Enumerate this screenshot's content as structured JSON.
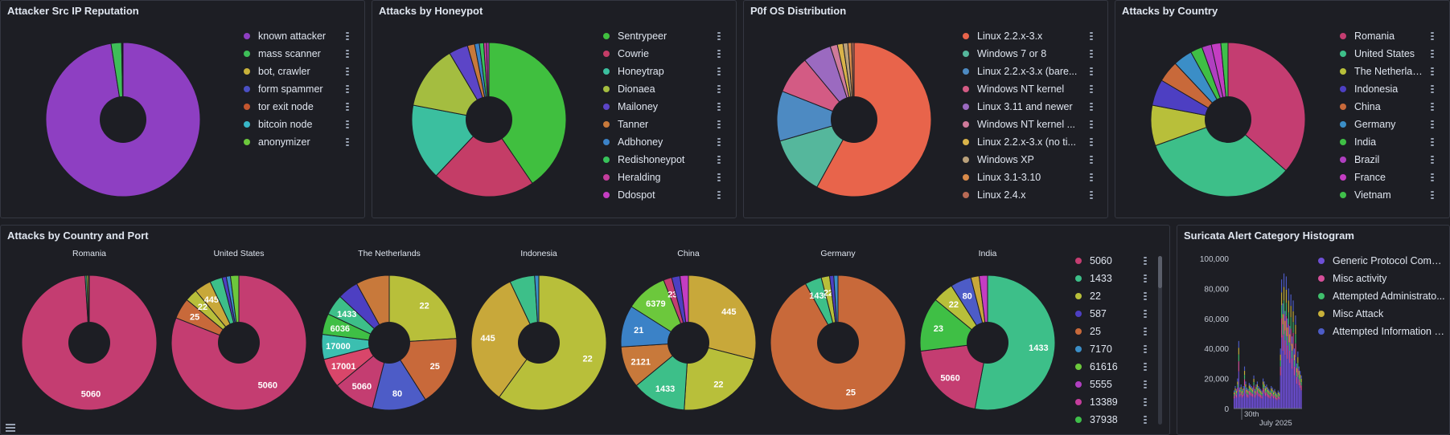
{
  "panels": {
    "reputation": {
      "title": "Attacker Src IP Reputation"
    },
    "honeypot": {
      "title": "Attacks by Honeypot"
    },
    "p0f": {
      "title": "P0f OS Distribution"
    },
    "country": {
      "title": "Attacks by Country"
    },
    "country_port": {
      "title": "Attacks by Country and Port"
    },
    "suricata": {
      "title": "Suricata Alert Category Histogram"
    }
  },
  "chart_data": [
    {
      "id": "reputation",
      "type": "pie",
      "categories": [
        "known attacker",
        "mass scanner",
        "bot, crawler",
        "form spammer",
        "tor exit node",
        "bitcoin node",
        "anonymizer"
      ],
      "values": [
        97.5,
        2.2,
        0.1,
        0.1,
        0.05,
        0.03,
        0.02
      ],
      "colors": [
        "#8e3fc2",
        "#3ebe58",
        "#c8b13a",
        "#4a4fc3",
        "#c3562f",
        "#38b6c7",
        "#6cc83c"
      ]
    },
    {
      "id": "honeypot",
      "type": "pie",
      "categories": [
        "Sentrypeer",
        "Cowrie",
        "Honeytrap",
        "Dionaea",
        "Mailoney",
        "Tanner",
        "Adbhoney",
        "Redishoneypot",
        "Heralding",
        "Ddospot"
      ],
      "values": [
        40.5,
        21.5,
        16,
        13.5,
        4,
        1.5,
        1,
        0.9,
        0.6,
        0.5
      ],
      "colors": [
        "#40bf3f",
        "#c43d67",
        "#3bbf9f",
        "#a4bd40",
        "#5c45c7",
        "#c8793b",
        "#3b82c7",
        "#38c25a",
        "#c43d9c",
        "#c43dc2"
      ]
    },
    {
      "id": "p0f",
      "type": "pie",
      "categories": [
        "Linux 2.2.x-3.x",
        "Windows 7 or 8",
        "Linux 2.2.x-3.x (bare...",
        "Windows NT kernel",
        "Linux 3.11 and newer",
        "Windows NT kernel ...",
        "Linux 2.2.x-3.x (no ti...",
        "Windows XP",
        "Linux 3.1-3.10",
        "Linux 2.4.x"
      ],
      "values": [
        58,
        12.5,
        10.5,
        8,
        6,
        1.5,
        1.2,
        1,
        0.8,
        0.5
      ],
      "colors": [
        "#e8644b",
        "#55b79c",
        "#4d8ac2",
        "#d35b84",
        "#9b6ac0",
        "#cf7a9a",
        "#d9b34a",
        "#b9a07a",
        "#d98b4a",
        "#b86a55"
      ]
    },
    {
      "id": "country",
      "type": "pie",
      "categories": [
        "Romania",
        "United States",
        "The Netherlands",
        "Indonesia",
        "China",
        "Germany",
        "India",
        "Brazil",
        "France",
        "Vietnam"
      ],
      "values": [
        36.5,
        33,
        8.5,
        5.5,
        4.5,
        4,
        2.5,
        2,
        2,
        1.5
      ],
      "colors": [
        "#c43d71",
        "#3dbf89",
        "#b8bf3a",
        "#4d3fc2",
        "#c8693a",
        "#3b8ec7",
        "#3fbf45",
        "#b03fc0",
        "#c43dc2",
        "#3fbf4a"
      ]
    },
    {
      "id": "country_port",
      "type": "pie",
      "legend": [
        "5060",
        "1433",
        "22",
        "587",
        "25",
        "7170",
        "61616",
        "5555",
        "13389",
        "37938"
      ],
      "legend_colors": [
        "#c43d71",
        "#3dbf89",
        "#b8bf3a",
        "#4d3fc2",
        "#c8693a",
        "#3b8ec7",
        "#6cc83c",
        "#b03fc0",
        "#c43d9c",
        "#3fbf4a"
      ],
      "pies": [
        {
          "name": "Romania",
          "slices": [
            {
              "port": "5060",
              "value": 99,
              "color": "#c43d71",
              "label": "5060"
            },
            {
              "port": "1433",
              "value": 0.4,
              "color": "#3dbf89"
            },
            {
              "port": "22",
              "value": 0.4,
              "color": "#b8bf3a"
            },
            {
              "port": "25",
              "value": 0.2,
              "color": "#c8693a"
            }
          ]
        },
        {
          "name": "United States",
          "slices": [
            {
              "port": "5060",
              "value": 81,
              "color": "#c43d71",
              "label": "5060"
            },
            {
              "port": "25",
              "value": 5,
              "color": "#c8693a",
              "label": "25"
            },
            {
              "port": "22",
              "value": 3,
              "color": "#b8bf3a",
              "label": "22"
            },
            {
              "port": "445",
              "value": 4,
              "color": "#c8a83a",
              "label": "445"
            },
            {
              "port": "1433",
              "value": 3,
              "color": "#3dbf89"
            },
            {
              "port": "587",
              "value": 1,
              "color": "#4d3fc2"
            },
            {
              "port": "7170",
              "value": 1,
              "color": "#3b8ec7"
            },
            {
              "port": "other",
              "value": 2,
              "color": "#6cc83c"
            }
          ]
        },
        {
          "name": "The Netherlands",
          "slices": [
            {
              "port": "22",
              "value": 24,
              "color": "#b8bf3a",
              "label": "22"
            },
            {
              "port": "25",
              "value": 17,
              "color": "#c8693a",
              "label": "25"
            },
            {
              "port": "80",
              "value": 13,
              "color": "#4d5cc7",
              "label": "80"
            },
            {
              "port": "5060",
              "value": 10,
              "color": "#c43d71",
              "label": "5060"
            },
            {
              "port": "17001",
              "value": 7,
              "color": "#d9466a",
              "label": "17001"
            },
            {
              "port": "17000",
              "value": 6,
              "color": "#3bbfb0",
              "label": "17000"
            },
            {
              "port": "6036",
              "value": 5,
              "color": "#3fbf45",
              "label": "6036"
            },
            {
              "port": "1433",
              "value": 5,
              "color": "#3dbf89",
              "label": "1433"
            },
            {
              "port": "587",
              "value": 5,
              "color": "#4d3fc2"
            },
            {
              "port": "other",
              "value": 8,
              "color": "#c8793b"
            }
          ]
        },
        {
          "name": "Indonesia",
          "slices": [
            {
              "port": "22",
              "value": 60,
              "color": "#b8bf3a",
              "label": "22"
            },
            {
              "port": "445",
              "value": 33,
              "color": "#c8a83a",
              "label": "445"
            },
            {
              "port": "1433",
              "value": 6,
              "color": "#3dbf89"
            },
            {
              "port": "other",
              "value": 1,
              "color": "#3b8ec7"
            }
          ]
        },
        {
          "name": "China",
          "slices": [
            {
              "port": "445",
              "value": 29,
              "color": "#c8a83a",
              "label": "445"
            },
            {
              "port": "22",
              "value": 22,
              "color": "#b8bf3a",
              "label": "22"
            },
            {
              "port": "1433",
              "value": 13,
              "color": "#3dbf89",
              "label": "1433"
            },
            {
              "port": "2121",
              "value": 10,
              "color": "#c8793b",
              "label": "2121"
            },
            {
              "port": "21",
              "value": 10,
              "color": "#3b82c7",
              "label": "21"
            },
            {
              "port": "6379",
              "value": 10,
              "color": "#6cc83c",
              "label": "6379"
            },
            {
              "port": "23",
              "value": 2,
              "color": "#c43d71",
              "label": "23"
            },
            {
              "port": "587",
              "value": 2,
              "color": "#4d3fc2"
            },
            {
              "port": "other",
              "value": 2,
              "color": "#c43dc2"
            }
          ]
        },
        {
          "name": "Germany",
          "slices": [
            {
              "port": "25",
              "value": 92,
              "color": "#c8693a",
              "label": "25"
            },
            {
              "port": "1433",
              "value": 4,
              "color": "#3dbf89",
              "label": "1433"
            },
            {
              "port": "22",
              "value": 2,
              "color": "#b8bf3a",
              "label": "22"
            },
            {
              "port": "587",
              "value": 1,
              "color": "#4d3fc2"
            },
            {
              "port": "other",
              "value": 1,
              "color": "#3b8ec7"
            }
          ]
        },
        {
          "name": "India",
          "slices": [
            {
              "port": "1433",
              "value": 53,
              "color": "#3dbf89",
              "label": "1433"
            },
            {
              "port": "5060",
              "value": 20,
              "color": "#c43d71",
              "label": "5060"
            },
            {
              "port": "23",
              "value": 13,
              "color": "#3fbf45",
              "label": "23"
            },
            {
              "port": "22",
              "value": 5,
              "color": "#b8bf3a",
              "label": "22"
            },
            {
              "port": "80",
              "value": 5,
              "color": "#4d5cc7",
              "label": "80"
            },
            {
              "port": "other1",
              "value": 2,
              "color": "#c8a83a"
            },
            {
              "port": "other2",
              "value": 2,
              "color": "#c43dc2"
            }
          ]
        }
      ]
    },
    {
      "id": "suricata",
      "type": "bar",
      "categories": [
        "Generic Protocol Comm...",
        "Misc activity",
        "Attempted Administrato...",
        "Misc Attack",
        "Attempted Information L..."
      ],
      "colors": [
        "#6e4fd6",
        "#d64f9a",
        "#3fbf6c",
        "#c8b13a",
        "#4d5cc7"
      ],
      "yticks": [
        "100,000",
        "80,000",
        "60,000",
        "40,000",
        "20,000",
        "0"
      ],
      "ylim": [
        0,
        100000
      ],
      "xticks": [
        "30th",
        "July 2025"
      ],
      "series_totals": [
        12000,
        15000,
        13000,
        20000,
        45000,
        14000,
        16000,
        13000,
        15000,
        28000,
        18000,
        14000,
        13000,
        17000,
        16000,
        15000,
        14000,
        22000,
        13000,
        16000,
        18000,
        15000,
        14000,
        13000,
        12000,
        20000,
        18000,
        15000,
        16000,
        14000,
        13000,
        12000,
        15000,
        14000,
        12000,
        13000,
        11000,
        10000,
        12000,
        11000,
        40000,
        86000,
        70000,
        90000,
        65000,
        88000,
        60000,
        80000,
        55000,
        76000,
        48000,
        72000,
        40000,
        62000,
        30000,
        38000,
        28000,
        25000,
        22000
      ]
    }
  ]
}
